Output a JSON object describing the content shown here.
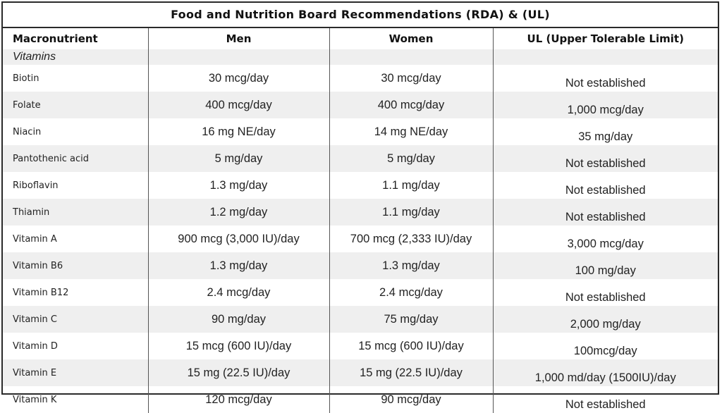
{
  "title": "Food and Nutrition Board Recommendations (RDA) & (UL)",
  "columns": [
    "Macronutrient",
    "Men",
    "Women",
    "UL (Upper Tolerable Limit)"
  ],
  "section_label": "Vitamins",
  "rows": [
    {
      "nutrient": "Biotin",
      "men": "30 mcg/day",
      "women": "30 mcg/day",
      "ul": "Not established"
    },
    {
      "nutrient": "Folate",
      "men": "400 mcg/day",
      "women": "400 mcg/day",
      "ul": "1,000 mcg/day"
    },
    {
      "nutrient": "Niacin",
      "men": "16 mg NE/day",
      "women": "14 mg NE/day",
      "ul": "35 mg/day"
    },
    {
      "nutrient": "Pantothenic acid",
      "men": "5 mg/day",
      "women": "5 mg/day",
      "ul": "Not established"
    },
    {
      "nutrient": "Riboflavin",
      "men": "1.3 mg/day",
      "women": "1.1 mg/day",
      "ul": "Not established"
    },
    {
      "nutrient": "Thiamin",
      "men": "1.2 mg/day",
      "women": "1.1 mg/day",
      "ul": "Not established"
    },
    {
      "nutrient": "Vitamin A",
      "men": "900 mcg (3,000 IU)/day",
      "women": "700 mcg (2,333 IU)/day",
      "ul": "3,000 mcg/day"
    },
    {
      "nutrient": "Vitamin B6",
      "men": "1.3 mg/day",
      "women": "1.3 mg/day",
      "ul": "100 mg/day"
    },
    {
      "nutrient": "Vitamin B12",
      "men": "2.4 mcg/day",
      "women": "2.4 mcg/day",
      "ul": "Not established"
    },
    {
      "nutrient": "Vitamin C",
      "men": "90 mg/day",
      "women": "75 mg/day",
      "ul": "2,000 mg/day"
    },
    {
      "nutrient": "Vitamin D",
      "men": "15 mcg (600 IU)/day",
      "women": "15 mcg (600 IU)/day",
      "ul": "100mcg/day"
    },
    {
      "nutrient": "Vitamin E",
      "men": "15 mg (22.5 IU)/day",
      "women": "15 mg (22.5 IU)/day",
      "ul": "1,000 md/day (1500IU)/day"
    },
    {
      "nutrient": "Vitamin K",
      "men": "120 mcg/day",
      "women": "90 mcg/day",
      "ul": "Not established"
    }
  ]
}
